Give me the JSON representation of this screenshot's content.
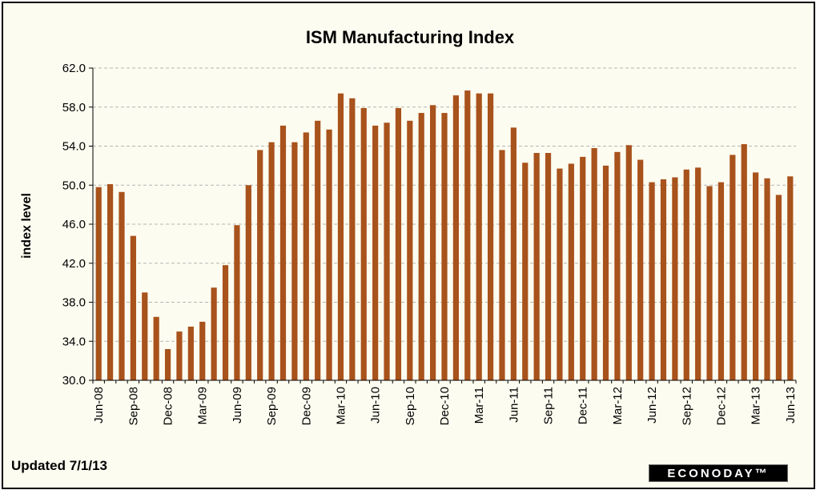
{
  "chart_data": {
    "type": "bar",
    "title": "ISM Manufacturing Index",
    "xlabel": "",
    "ylabel": "index level",
    "ylim": [
      30,
      62
    ],
    "yticks": [
      "30.0",
      "34.0",
      "38.0",
      "42.0",
      "46.0",
      "50.0",
      "54.0",
      "58.0",
      "62.0"
    ],
    "grid": "horizontal dashed",
    "bar_color": "#a8521c",
    "categories": [
      "Jun-08",
      "Jul-08",
      "Aug-08",
      "Sep-08",
      "Oct-08",
      "Nov-08",
      "Dec-08",
      "Jan-09",
      "Feb-09",
      "Mar-09",
      "Apr-09",
      "May-09",
      "Jun-09",
      "Jul-09",
      "Aug-09",
      "Sep-09",
      "Oct-09",
      "Nov-09",
      "Dec-09",
      "Jan-10",
      "Feb-10",
      "Mar-10",
      "Apr-10",
      "May-10",
      "Jun-10",
      "Jul-10",
      "Aug-10",
      "Sep-10",
      "Oct-10",
      "Nov-10",
      "Dec-10",
      "Jan-11",
      "Feb-11",
      "Mar-11",
      "Apr-11",
      "May-11",
      "Jun-11",
      "Jul-11",
      "Aug-11",
      "Sep-11",
      "Oct-11",
      "Nov-11",
      "Dec-11",
      "Jan-12",
      "Feb-12",
      "Mar-12",
      "Apr-12",
      "May-12",
      "Jun-12",
      "Jul-12",
      "Aug-12",
      "Sep-12",
      "Oct-12",
      "Nov-12",
      "Dec-12",
      "Jan-13",
      "Feb-13",
      "Mar-13",
      "Apr-13",
      "May-13",
      "Jun-13"
    ],
    "tick_labels": [
      {
        "index": 0,
        "label": "Jun-08"
      },
      {
        "index": 3,
        "label": "Sep-08"
      },
      {
        "index": 6,
        "label": "Dec-08"
      },
      {
        "index": 9,
        "label": "Mar-09"
      },
      {
        "index": 12,
        "label": "Jun-09"
      },
      {
        "index": 15,
        "label": "Sep-09"
      },
      {
        "index": 18,
        "label": "Dec-09"
      },
      {
        "index": 21,
        "label": "Mar-10"
      },
      {
        "index": 24,
        "label": "Jun-10"
      },
      {
        "index": 27,
        "label": "Sep-10"
      },
      {
        "index": 30,
        "label": "Dec-10"
      },
      {
        "index": 33,
        "label": "Mar-11"
      },
      {
        "index": 36,
        "label": "Jun-11"
      },
      {
        "index": 39,
        "label": "Sep-11"
      },
      {
        "index": 42,
        "label": "Dec-11"
      },
      {
        "index": 45,
        "label": "Mar-12"
      },
      {
        "index": 48,
        "label": "Jun-12"
      },
      {
        "index": 51,
        "label": "Sep-12"
      },
      {
        "index": 54,
        "label": "Dec-12"
      },
      {
        "index": 57,
        "label": "Mar-13"
      },
      {
        "index": 60,
        "label": "Jun-13"
      }
    ],
    "values": [
      49.8,
      50.1,
      49.3,
      44.8,
      39.0,
      36.5,
      33.2,
      35.0,
      35.5,
      36.0,
      39.5,
      41.8,
      45.9,
      50.0,
      53.6,
      54.4,
      56.1,
      54.4,
      55.4,
      56.6,
      55.7,
      59.4,
      58.9,
      57.9,
      56.1,
      56.4,
      57.9,
      56.6,
      57.4,
      58.2,
      57.4,
      59.2,
      59.7,
      59.4,
      59.4,
      53.6,
      55.9,
      52.3,
      53.3,
      53.3,
      51.7,
      52.2,
      52.9,
      53.8,
      52.0,
      53.4,
      54.1,
      52.6,
      50.3,
      50.6,
      50.8,
      51.6,
      51.8,
      49.9,
      50.3,
      53.1,
      54.2,
      51.3,
      50.7,
      49.0,
      50.9
    ]
  },
  "footer": {
    "updated": "Updated 7/1/13",
    "logo": "ECONODAY™"
  }
}
